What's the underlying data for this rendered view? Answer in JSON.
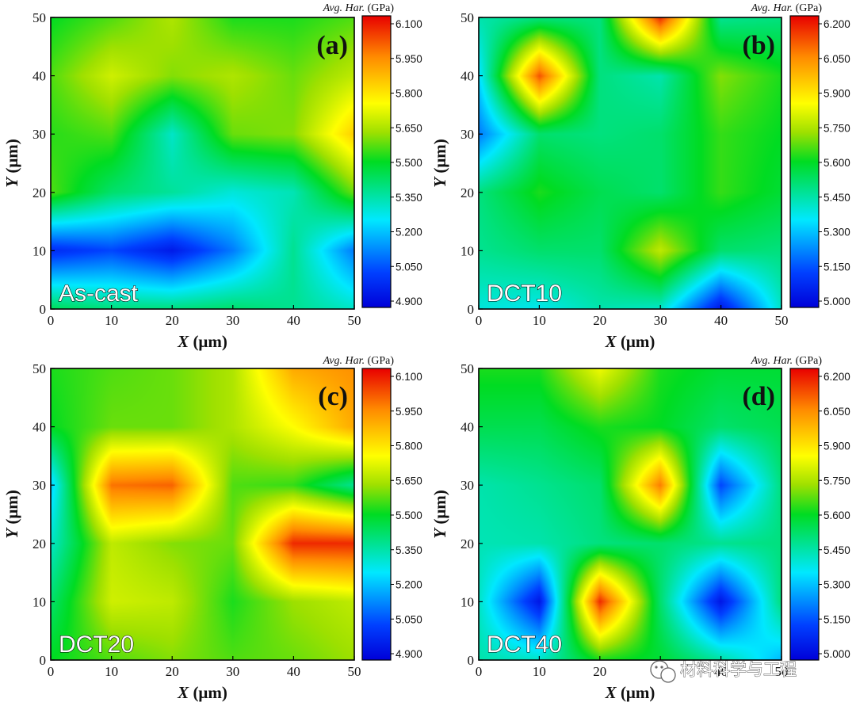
{
  "watermark": "材料科学与工程",
  "chart_data": [
    {
      "type": "heatmap",
      "panel": "(a)",
      "sample": "As-cast",
      "xlabel": "X (μm)",
      "ylabel": "Y (μm)",
      "x": [
        0,
        10,
        20,
        30,
        40,
        50
      ],
      "y": [
        0,
        10,
        20,
        30,
        40,
        50
      ],
      "xlim": [
        0,
        50
      ],
      "ylim": [
        0,
        50
      ],
      "xticks": [
        "0",
        "10",
        "20",
        "30",
        "40",
        "50"
      ],
      "yticks": [
        "0",
        "10",
        "20",
        "30",
        "40",
        "50"
      ],
      "z": [
        [
          5.44,
          5.4,
          5.4,
          5.42,
          5.38,
          5.32
        ],
        [
          5.0,
          5.05,
          4.96,
          5.12,
          5.38,
          5.12
        ],
        [
          5.56,
          5.42,
          5.37,
          5.3,
          5.34,
          5.58
        ],
        [
          5.53,
          5.56,
          5.32,
          5.58,
          5.6,
          5.82
        ],
        [
          5.56,
          5.68,
          5.6,
          5.64,
          5.58,
          5.66
        ],
        [
          5.5,
          5.56,
          5.64,
          5.52,
          5.52,
          5.56
        ]
      ],
      "colorbar": {
        "title": "Avg. Har. (GPa)",
        "min": 4.9,
        "max": 6.1,
        "ticks": [
          "6.100",
          "5.950",
          "5.800",
          "5.650",
          "5.500",
          "5.350",
          "5.200",
          "5.050",
          "4.900"
        ]
      }
    },
    {
      "type": "heatmap",
      "panel": "(b)",
      "sample": "DCT10",
      "xlabel": "X (μm)",
      "ylabel": "Y (μm)",
      "x": [
        0,
        10,
        20,
        30,
        40,
        50
      ],
      "y": [
        0,
        10,
        20,
        30,
        40,
        50
      ],
      "xlim": [
        0,
        50
      ],
      "ylim": [
        0,
        50
      ],
      "xticks": [
        "0",
        "10",
        "20",
        "30",
        "40",
        "50"
      ],
      "yticks": [
        "0",
        "10",
        "20",
        "30",
        "40",
        "50"
      ],
      "z": [
        [
          5.4,
          5.38,
          5.45,
          5.42,
          5.05,
          5.42
        ],
        [
          5.48,
          5.52,
          5.52,
          5.76,
          5.52,
          5.5
        ],
        [
          5.5,
          5.62,
          5.55,
          5.52,
          5.64,
          5.58
        ],
        [
          5.22,
          5.52,
          5.5,
          5.52,
          5.64,
          5.6
        ],
        [
          5.35,
          6.1,
          5.5,
          5.45,
          5.7,
          5.62
        ],
        [
          5.45,
          5.5,
          5.5,
          6.15,
          5.48,
          5.5
        ]
      ],
      "colorbar": {
        "title": "Avg. Har. (GPa)",
        "min": 5.0,
        "max": 6.2,
        "ticks": [
          "6.200",
          "6.050",
          "5.900",
          "5.750",
          "5.600",
          "5.450",
          "5.300",
          "5.150",
          "5.000"
        ]
      }
    },
    {
      "type": "heatmap",
      "panel": "(c)",
      "sample": "DCT20",
      "xlabel": "X (μm)",
      "ylabel": "Y (μm)",
      "x": [
        0,
        10,
        20,
        30,
        40,
        50
      ],
      "y": [
        0,
        10,
        20,
        30,
        40,
        50
      ],
      "xlim": [
        0,
        50
      ],
      "ylim": [
        0,
        50
      ],
      "xticks": [
        "0",
        "10",
        "20",
        "30",
        "40",
        "50"
      ],
      "yticks": [
        "0",
        "10",
        "20",
        "30",
        "40",
        "50"
      ],
      "z": [
        [
          5.5,
          5.56,
          5.6,
          5.56,
          5.58,
          5.62
        ],
        [
          5.42,
          5.68,
          5.66,
          5.52,
          5.62,
          5.66
        ],
        [
          5.32,
          5.66,
          5.6,
          5.58,
          6.05,
          6.05
        ],
        [
          5.22,
          5.96,
          5.98,
          5.56,
          5.54,
          5.38
        ],
        [
          5.5,
          5.58,
          5.58,
          5.64,
          5.74,
          5.88
        ],
        [
          5.52,
          5.56,
          5.58,
          5.64,
          5.88,
          5.92
        ]
      ],
      "colorbar": {
        "title": "Avg. Har. (GPa)",
        "min": 4.9,
        "max": 6.1,
        "ticks": [
          "6.100",
          "5.950",
          "5.800",
          "5.650",
          "5.500",
          "5.350",
          "5.200",
          "5.050",
          "4.900"
        ]
      }
    },
    {
      "type": "heatmap",
      "panel": "(d)",
      "sample": "DCT40",
      "xlabel": "X (μm)",
      "ylabel": "Y (μm)",
      "x": [
        0,
        10,
        20,
        30,
        40,
        50
      ],
      "y": [
        0,
        10,
        20,
        30,
        40,
        50
      ],
      "xlim": [
        0,
        50
      ],
      "ylim": [
        0,
        50
      ],
      "xticks": [
        "0",
        "10",
        "20",
        "30",
        "40",
        "50"
      ],
      "yticks": [
        "0",
        "10",
        "20",
        "30",
        "40",
        "50"
      ],
      "z": [
        [
          5.45,
          5.42,
          5.62,
          5.58,
          5.46,
          5.3
        ],
        [
          5.42,
          5.05,
          6.15,
          5.52,
          5.05,
          5.5
        ],
        [
          5.44,
          5.45,
          5.5,
          5.52,
          5.48,
          5.5
        ],
        [
          5.45,
          5.48,
          5.52,
          6.05,
          5.15,
          5.5
        ],
        [
          5.55,
          5.55,
          5.62,
          5.6,
          5.52,
          5.55
        ],
        [
          5.62,
          5.62,
          5.82,
          5.62,
          5.58,
          5.58
        ]
      ],
      "colorbar": {
        "title": "Avg. Har. (GPa)",
        "min": 5.0,
        "max": 6.2,
        "ticks": [
          "6.200",
          "6.050",
          "5.900",
          "5.750",
          "5.600",
          "5.450",
          "5.300",
          "5.150",
          "5.000"
        ]
      }
    }
  ]
}
